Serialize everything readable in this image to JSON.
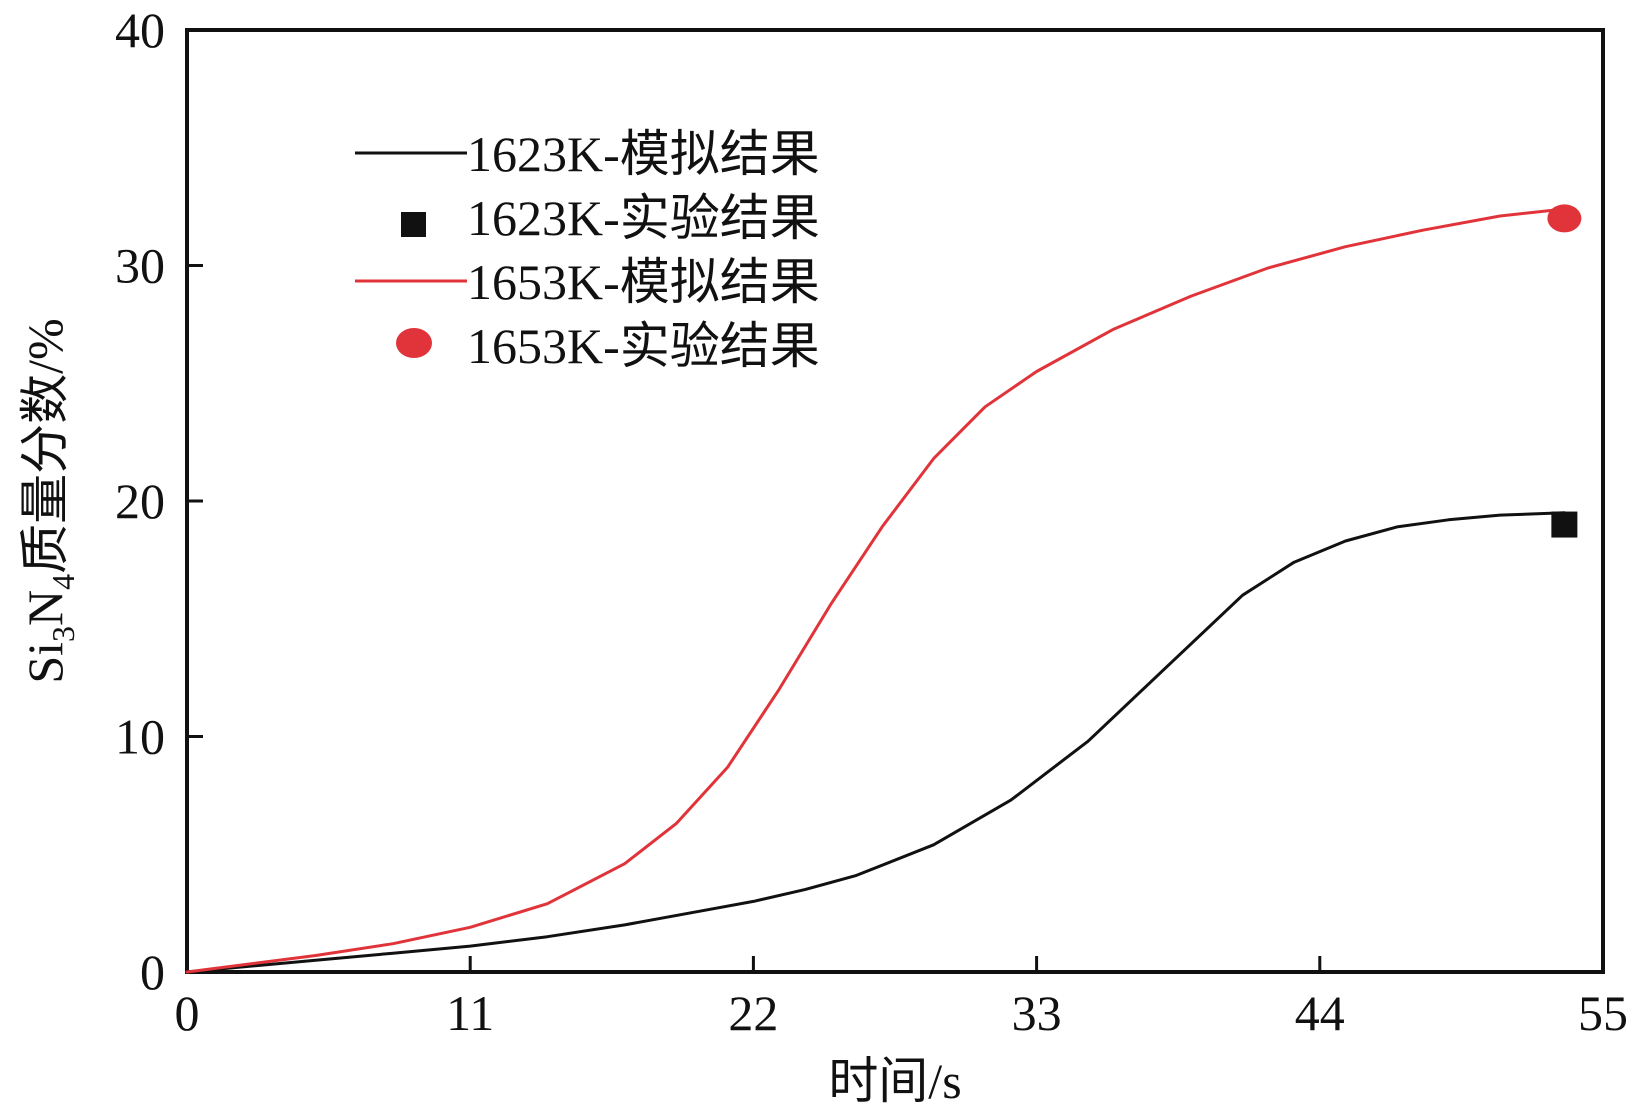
{
  "chart_data": {
    "type": "line",
    "xlabel": "时间/s",
    "ylabel": "Si3N4质量分数/%",
    "ylabel_parts": {
      "a": "Si",
      "sub1": "3",
      "b": "N",
      "sub2": "4",
      "c": "质量分数/%"
    },
    "xlim": [
      0,
      55
    ],
    "ylim": [
      0,
      40
    ],
    "xticks": [
      0,
      11,
      22,
      33,
      44,
      55
    ],
    "yticks": [
      0,
      10,
      20,
      30,
      40
    ],
    "grid": false,
    "legend_position": "top-left",
    "series": [
      {
        "name": "1623K-模拟结果",
        "kind": "line",
        "color": "#111111",
        "x": [
          0,
          5,
          8,
          11,
          14,
          17,
          20,
          22,
          24,
          26,
          29,
          32,
          35,
          38,
          41,
          43,
          45,
          47,
          49,
          51,
          53.5
        ],
        "y": [
          0,
          0.5,
          0.8,
          1.1,
          1.5,
          2.0,
          2.6,
          3.0,
          3.5,
          4.1,
          5.4,
          7.3,
          9.8,
          12.9,
          16.0,
          17.4,
          18.3,
          18.9,
          19.2,
          19.4,
          19.5
        ]
      },
      {
        "name": "1623K-实验结果",
        "kind": "marker",
        "marker": "square",
        "color": "#111111",
        "x": [
          53.5
        ],
        "y": [
          19.0
        ]
      },
      {
        "name": "1653K-模拟结果",
        "kind": "line",
        "color": "#e0343a",
        "x": [
          0,
          5,
          8,
          11,
          14,
          17,
          19,
          21,
          23,
          25,
          27,
          29,
          31,
          33,
          36,
          39,
          42,
          45,
          48,
          51,
          53.5
        ],
        "y": [
          0,
          0.7,
          1.2,
          1.9,
          2.9,
          4.6,
          6.3,
          8.7,
          12.0,
          15.6,
          18.9,
          21.8,
          24.0,
          25.5,
          27.3,
          28.7,
          29.9,
          30.8,
          31.5,
          32.1,
          32.4
        ]
      },
      {
        "name": "1653K-实验结果",
        "kind": "marker",
        "marker": "circle",
        "color": "#e0343a",
        "x": [
          53.5
        ],
        "y": [
          32.0
        ]
      }
    ]
  }
}
